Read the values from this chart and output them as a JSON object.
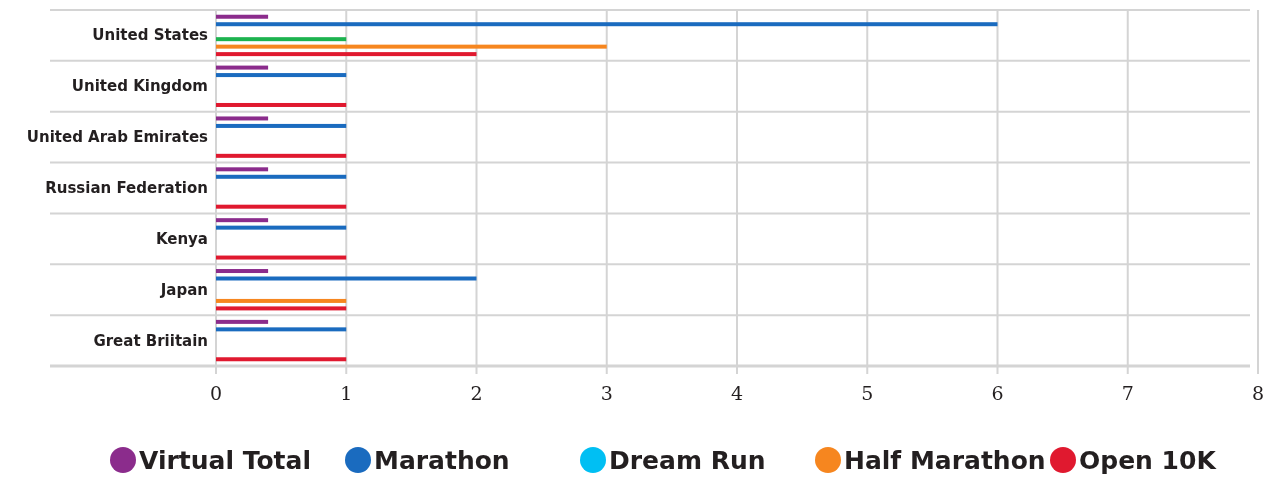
{
  "chart_data": {
    "type": "bar",
    "orientation": "horizontal",
    "categories": [
      "United States",
      "United Kingdom",
      "United Arab Emirates",
      "Russian Federation",
      "Kenya",
      "Japan",
      "Great Briitain"
    ],
    "series": [
      {
        "name": "Virtual Total",
        "color": "#8b2c8c",
        "values": [
          0.4,
          0.4,
          0.4,
          0.4,
          0.4,
          0.4,
          0.4
        ]
      },
      {
        "name": "Marathon",
        "color": "#1a6bbf",
        "values": [
          6,
          1,
          1,
          1,
          1,
          2,
          1
        ]
      },
      {
        "name": "Dream Run",
        "color": "#00bff3",
        "values": [
          null,
          null,
          null,
          null,
          null,
          null,
          null
        ]
      },
      {
        "color": "#1db34f",
        "values": [
          1,
          null,
          null,
          null,
          null,
          null,
          null
        ]
      },
      {
        "name": "Half Marathon",
        "color": "#f6861f",
        "values": [
          3,
          null,
          null,
          null,
          null,
          1,
          null
        ]
      },
      {
        "name": "Open 10K",
        "color": "#e0192f",
        "values": [
          2,
          1,
          1,
          1,
          1,
          1,
          1
        ]
      }
    ],
    "xlim": [
      0,
      8
    ],
    "xticks": [
      0,
      1,
      2,
      3,
      4,
      5,
      6,
      7,
      8
    ],
    "grid": true,
    "legend": "bottom"
  }
}
